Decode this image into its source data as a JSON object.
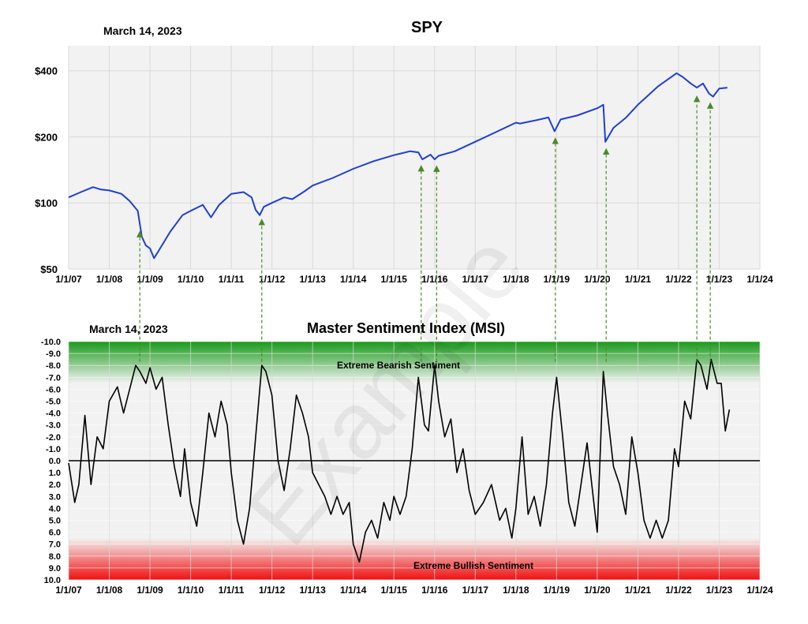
{
  "report_date": "March 14, 2023",
  "watermark": "Example",
  "x_tick_labels": [
    "1/1/07",
    "1/1/08",
    "1/1/09",
    "1/1/10",
    "1/1/11",
    "1/1/12",
    "1/1/13",
    "1/1/14",
    "1/1/15",
    "1/1/16",
    "1/1/17",
    "1/1/18",
    "1/1/19",
    "1/1/20",
    "1/1/21",
    "1/1/22",
    "1/1/23",
    "1/1/24"
  ],
  "colors": {
    "spy_line": "#1f3fd0",
    "msi_line": "#000000",
    "arrow": "#4a8a2a",
    "bearish_zone": "#1a9a1a",
    "bullish_zone": "#f01010",
    "plot_bg": "#f2f2f2",
    "grid": "#d9d9d9"
  },
  "chart_data": [
    {
      "type": "line",
      "title": "SPY",
      "xlim": [
        2007.0,
        2024.0
      ],
      "y_scale": "log",
      "ylim": [
        50,
        520
      ],
      "y_ticks": [
        50,
        100,
        200,
        400
      ],
      "y_tick_labels": [
        "$50",
        "$100",
        "$200",
        "$400"
      ],
      "series": [
        {
          "x": [
            2007.0,
            2007.3,
            2007.6,
            2007.8,
            2008.0,
            2008.3,
            2008.5,
            2008.7,
            2008.8,
            2008.9,
            2009.0,
            2009.1,
            2009.2,
            2009.5,
            2009.8,
            2010.0,
            2010.3,
            2010.5,
            2010.7,
            2011.0,
            2011.3,
            2011.5,
            2011.6,
            2011.7,
            2011.8,
            2012.0,
            2012.3,
            2012.5,
            2012.8,
            2013.0,
            2013.5,
            2014.0,
            2014.5,
            2015.0,
            2015.4,
            2015.6,
            2015.7,
            2015.9,
            2016.0,
            2016.1,
            2016.5,
            2017.0,
            2017.5,
            2018.0,
            2018.1,
            2018.5,
            2018.8,
            2018.95,
            2019.1,
            2019.5,
            2020.0,
            2020.15,
            2020.2,
            2020.4,
            2020.7,
            2021.0,
            2021.5,
            2021.95,
            2022.1,
            2022.3,
            2022.45,
            2022.6,
            2022.75,
            2022.85,
            2023.0,
            2023.2
          ],
          "values": [
            106,
            112,
            118,
            115,
            114,
            110,
            102,
            92,
            70,
            64,
            62,
            56,
            60,
            74,
            88,
            92,
            98,
            86,
            98,
            110,
            112,
            106,
            93,
            88,
            96,
            100,
            106,
            104,
            113,
            120,
            130,
            143,
            155,
            165,
            172,
            170,
            158,
            166,
            158,
            164,
            172,
            190,
            210,
            232,
            230,
            238,
            245,
            212,
            240,
            250,
            270,
            280,
            190,
            220,
            244,
            280,
            340,
            390,
            375,
            350,
            335,
            350,
            315,
            305,
            332,
            335
          ]
        }
      ],
      "arrow_dates": [
        2008.75,
        2011.75,
        2015.67,
        2016.05,
        2018.97,
        2020.22,
        2022.45,
        2022.78
      ]
    },
    {
      "type": "line",
      "title": "Master Sentiment Index (MSI)",
      "xlim": [
        2007.0,
        2024.0
      ],
      "ylim": [
        -10,
        10
      ],
      "y_inverted": true,
      "y_ticks": [
        -10,
        -9,
        -8,
        -7,
        -6,
        -5,
        -4,
        -3,
        -2,
        -1,
        0,
        1,
        2,
        3,
        4,
        5,
        6,
        7,
        8,
        9,
        10
      ],
      "y_tick_labels": [
        "-10.0",
        "-9.0",
        "-8.0",
        "-7.0",
        "-6.0",
        "-5.0",
        "-4.0",
        "-3.0",
        "-2.0",
        "-1.0",
        "0.0",
        "1.0",
        "2.0",
        "3.0",
        "4.0",
        "5.0",
        "6.0",
        "7.0",
        "8.0",
        "9.0",
        "10.0"
      ],
      "zones": [
        {
          "label": "Extreme Bearish Sentiment",
          "from": -10,
          "to": -6.5
        },
        {
          "label": "Extreme Bullish Sentiment",
          "from": 6.5,
          "to": 10
        }
      ],
      "series": [
        {
          "x": [
            2007.0,
            2007.15,
            2007.25,
            2007.4,
            2007.55,
            2007.7,
            2007.85,
            2008.0,
            2008.2,
            2008.35,
            2008.5,
            2008.65,
            2008.75,
            2008.9,
            2009.0,
            2009.15,
            2009.3,
            2009.45,
            2009.6,
            2009.75,
            2009.85,
            2010.0,
            2010.15,
            2010.3,
            2010.45,
            2010.6,
            2010.75,
            2010.9,
            2011.0,
            2011.15,
            2011.3,
            2011.45,
            2011.6,
            2011.75,
            2011.85,
            2012.0,
            2012.15,
            2012.3,
            2012.45,
            2012.6,
            2012.75,
            2012.9,
            2013.0,
            2013.15,
            2013.3,
            2013.45,
            2013.6,
            2013.75,
            2013.9,
            2014.0,
            2014.15,
            2014.3,
            2014.45,
            2014.6,
            2014.75,
            2014.9,
            2015.0,
            2015.15,
            2015.3,
            2015.45,
            2015.6,
            2015.75,
            2015.85,
            2016.0,
            2016.1,
            2016.25,
            2016.4,
            2016.55,
            2016.7,
            2016.85,
            2017.0,
            2017.2,
            2017.4,
            2017.6,
            2017.75,
            2017.9,
            2018.0,
            2018.15,
            2018.3,
            2018.45,
            2018.6,
            2018.75,
            2018.9,
            2019.0,
            2019.15,
            2019.3,
            2019.45,
            2019.6,
            2019.75,
            2019.9,
            2020.0,
            2020.15,
            2020.25,
            2020.4,
            2020.55,
            2020.7,
            2020.85,
            2021.0,
            2021.15,
            2021.3,
            2021.45,
            2021.6,
            2021.75,
            2021.9,
            2022.0,
            2022.15,
            2022.3,
            2022.45,
            2022.55,
            2022.7,
            2022.8,
            2022.95,
            2023.05,
            2023.15,
            2023.25
          ],
          "values": [
            0.2,
            3.5,
            2.0,
            -3.8,
            2.0,
            -2.0,
            -1.0,
            -5.0,
            -6.2,
            -4.0,
            -6.0,
            -8.0,
            -7.5,
            -6.5,
            -7.8,
            -6.0,
            -7.0,
            -3.0,
            0.5,
            3.0,
            -1.0,
            3.5,
            5.5,
            1.0,
            -4.0,
            -2.0,
            -5.0,
            -3.0,
            1.0,
            5.0,
            7.0,
            4.0,
            -2.0,
            -8.0,
            -7.5,
            -5.5,
            0.0,
            2.5,
            -1.0,
            -5.5,
            -4.0,
            -2.0,
            1.0,
            2.0,
            3.0,
            4.5,
            3.0,
            4.5,
            3.5,
            7.0,
            8.5,
            6.0,
            5.0,
            6.5,
            3.5,
            5.0,
            3.0,
            4.5,
            3.0,
            -1.0,
            -7.0,
            -3.0,
            -2.5,
            -8.0,
            -5.0,
            -2.0,
            -3.5,
            1.0,
            -1.0,
            2.5,
            4.5,
            3.5,
            2.0,
            5.0,
            4.0,
            6.5,
            4.0,
            -2.0,
            4.5,
            3.0,
            5.5,
            2.0,
            -4.0,
            -7.0,
            -2.0,
            3.5,
            5.5,
            2.0,
            -1.5,
            3.0,
            6.0,
            -7.5,
            -4.0,
            0.5,
            2.0,
            4.5,
            -2.0,
            1.0,
            5.0,
            6.5,
            5.0,
            6.5,
            5.0,
            -1.0,
            0.5,
            -5.0,
            -3.5,
            -8.5,
            -8.0,
            -6.0,
            -8.5,
            -6.5,
            -6.5,
            -2.5,
            -4.3
          ]
        }
      ],
      "arrow_dates": [
        2008.75,
        2011.75,
        2015.67,
        2016.05,
        2018.97,
        2020.22,
        2022.45,
        2022.78
      ]
    }
  ]
}
